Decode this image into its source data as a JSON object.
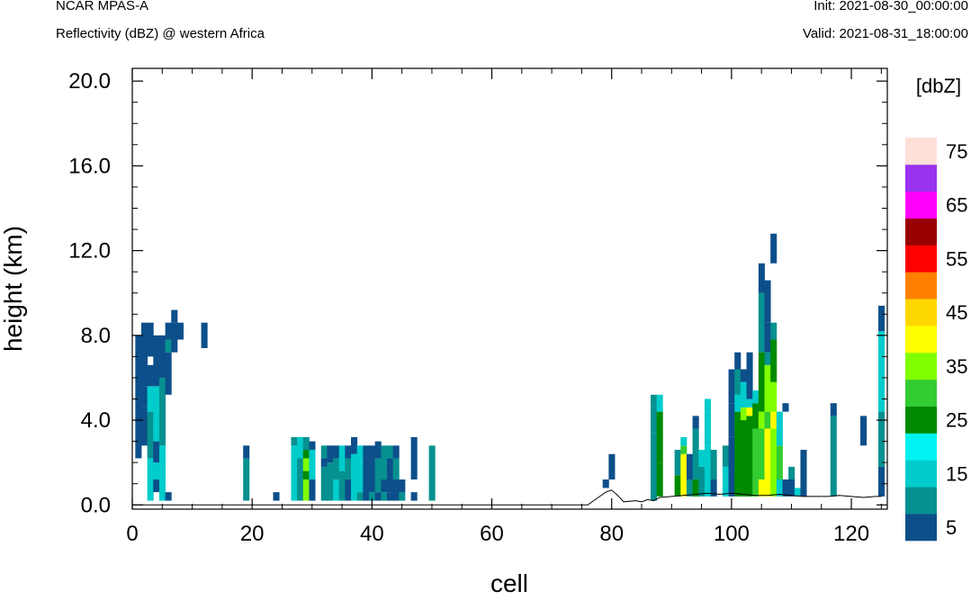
{
  "header": {
    "left_title": "NCAR MPAS-A",
    "left_subtitle": "Reflectivity (dBZ) @ western Africa",
    "init": "Init: 2021-08-30_00:00:00",
    "valid": "Valid: 2021-08-31_18:00:00"
  },
  "colorbar": {
    "unit_label": "[dbZ]",
    "labels": [
      "5",
      "15",
      "25",
      "35",
      "45",
      "55",
      "65",
      "75"
    ],
    "colors": [
      "#0c4f8a",
      "#079090",
      "#00cccc",
      "#00f2f2",
      "#008a00",
      "#33cc33",
      "#80ff00",
      "#ffff00",
      "#ffd700",
      "#ff8000",
      "#ff0000",
      "#990000",
      "#ff00ff",
      "#9933ee",
      "#ffe0d8"
    ]
  },
  "chart_data": {
    "type": "heatmap",
    "title": "Reflectivity (dBZ) @ western Africa",
    "xlabel": "cell",
    "ylabel": "height (km)",
    "xlim": [
      0,
      126
    ],
    "ylim": [
      -0.2,
      20.6
    ],
    "x_ticks": [
      0,
      20,
      40,
      60,
      80,
      100,
      120
    ],
    "x_tick_labels": [
      "0",
      "20",
      "40",
      "60",
      "80",
      "100",
      "120"
    ],
    "y_ticks": [
      0,
      4,
      8,
      12,
      16,
      20
    ],
    "y_tick_labels": [
      "0.0",
      "4.0",
      "8.0",
      "12.0",
      "16.0",
      "20.0"
    ],
    "color_levels": [
      5,
      10,
      15,
      20,
      25,
      30,
      35,
      40,
      45,
      50,
      55,
      60,
      65,
      70,
      75
    ],
    "terrain_height_km": [
      [
        0,
        0
      ],
      [
        76,
        0
      ],
      [
        78,
        0.4
      ],
      [
        79,
        0.6
      ],
      [
        80,
        0.7
      ],
      [
        81,
        0.45
      ],
      [
        82,
        0.15
      ],
      [
        84,
        0.2
      ],
      [
        85,
        0.15
      ],
      [
        86,
        0.25
      ],
      [
        87,
        0.2
      ],
      [
        88,
        0.35
      ],
      [
        90,
        0.4
      ],
      [
        92,
        0.45
      ],
      [
        94,
        0.5
      ],
      [
        96,
        0.55
      ],
      [
        98,
        0.5
      ],
      [
        100,
        0.55
      ],
      [
        102,
        0.5
      ],
      [
        104,
        0.45
      ],
      [
        106,
        0.45
      ],
      [
        108,
        0.5
      ],
      [
        110,
        0.45
      ],
      [
        112,
        0.4
      ],
      [
        114,
        0.4
      ],
      [
        116,
        0.4
      ],
      [
        118,
        0.45
      ],
      [
        120,
        0.4
      ],
      [
        122,
        0.35
      ],
      [
        124,
        0.4
      ],
      [
        125,
        0.4
      ]
    ],
    "columns": [
      {
        "x": 1,
        "cells": [
          [
            2.2,
            2.6,
            5
          ],
          [
            2.6,
            4.0,
            5
          ],
          [
            4.0,
            8.0,
            5
          ]
        ]
      },
      {
        "x": 2,
        "cells": [
          [
            2.8,
            4.6,
            5
          ],
          [
            4.6,
            5.6,
            5
          ],
          [
            5.6,
            8.6,
            5
          ]
        ]
      },
      {
        "x": 3,
        "cells": [
          [
            0.2,
            2.2,
            15
          ],
          [
            2.2,
            4.4,
            10
          ],
          [
            4.4,
            5.6,
            15
          ],
          [
            5.6,
            6.0,
            5
          ],
          [
            6.0,
            6.6,
            5
          ],
          [
            7.0,
            8.6,
            5
          ]
        ]
      },
      {
        "x": 4,
        "cells": [
          [
            0.6,
            1.2,
            5
          ],
          [
            1.2,
            2.0,
            15
          ],
          [
            2.0,
            3.0,
            5
          ],
          [
            3.0,
            3.6,
            15
          ],
          [
            3.6,
            5.6,
            15
          ],
          [
            5.6,
            8.0,
            5
          ]
        ]
      },
      {
        "x": 5,
        "cells": [
          [
            0.2,
            1.2,
            15
          ],
          [
            1.2,
            2.8,
            15
          ],
          [
            2.8,
            3.6,
            10
          ],
          [
            3.6,
            6.0,
            10
          ],
          [
            6.0,
            8.0,
            5
          ]
        ]
      },
      {
        "x": 6,
        "cells": [
          [
            0.2,
            0.6,
            5
          ],
          [
            5.2,
            7.2,
            5
          ],
          [
            7.2,
            7.8,
            10
          ],
          [
            7.8,
            8.6,
            5
          ]
        ]
      },
      {
        "x": 7,
        "cells": [
          [
            7.2,
            8.6,
            5
          ],
          [
            8.6,
            9.2,
            5
          ]
        ]
      },
      {
        "x": 8,
        "cells": [
          [
            7.8,
            8.6,
            5
          ]
        ]
      },
      {
        "x": 12,
        "cells": [
          [
            7.4,
            8.6,
            5
          ]
        ]
      },
      {
        "x": 19,
        "cells": [
          [
            0.2,
            2.2,
            10
          ],
          [
            2.2,
            2.8,
            5
          ]
        ]
      },
      {
        "x": 24,
        "cells": [
          [
            0.2,
            0.6,
            5
          ]
        ]
      },
      {
        "x": 27,
        "cells": [
          [
            0.2,
            2.8,
            15
          ],
          [
            2.8,
            3.2,
            10
          ]
        ]
      },
      {
        "x": 28,
        "cells": [
          [
            0.2,
            2.2,
            10
          ],
          [
            2.2,
            3.2,
            15
          ]
        ]
      },
      {
        "x": 29,
        "cells": [
          [
            0.2,
            1.2,
            35
          ],
          [
            1.2,
            1.6,
            25
          ],
          [
            1.6,
            2.2,
            35
          ],
          [
            2.2,
            2.6,
            25
          ],
          [
            2.6,
            3.2,
            10
          ]
        ]
      },
      {
        "x": 30,
        "cells": [
          [
            0.2,
            1.2,
            5
          ],
          [
            1.2,
            2.6,
            15
          ],
          [
            2.6,
            3.0,
            5
          ]
        ]
      },
      {
        "x": 32,
        "cells": [
          [
            0.2,
            1.8,
            10
          ],
          [
            1.8,
            2.2,
            5
          ],
          [
            2.2,
            2.8,
            10
          ]
        ]
      },
      {
        "x": 33,
        "cells": [
          [
            0.2,
            2.0,
            10
          ],
          [
            2.0,
            2.8,
            5
          ]
        ]
      },
      {
        "x": 34,
        "cells": [
          [
            0.2,
            1.2,
            15
          ],
          [
            1.2,
            2.2,
            10
          ],
          [
            2.2,
            2.8,
            5
          ]
        ]
      },
      {
        "x": 35,
        "cells": [
          [
            0.2,
            1.6,
            10
          ],
          [
            1.6,
            2.8,
            15
          ]
        ]
      },
      {
        "x": 36,
        "cells": [
          [
            0.2,
            1.2,
            5
          ],
          [
            1.2,
            2.2,
            10
          ],
          [
            2.2,
            2.8,
            5
          ]
        ]
      },
      {
        "x": 37,
        "cells": [
          [
            0.2,
            1.2,
            15
          ],
          [
            1.2,
            2.4,
            15
          ],
          [
            2.4,
            3.2,
            5
          ]
        ]
      },
      {
        "x": 38,
        "cells": [
          [
            0.2,
            0.6,
            10
          ],
          [
            0.6,
            2.0,
            15
          ],
          [
            2.0,
            2.8,
            15
          ]
        ]
      },
      {
        "x": 39,
        "cells": [
          [
            0.2,
            1.2,
            5
          ],
          [
            1.2,
            2.8,
            5
          ]
        ]
      },
      {
        "x": 40,
        "cells": [
          [
            0.2,
            0.6,
            10
          ],
          [
            0.6,
            2.2,
            5
          ],
          [
            2.2,
            2.8,
            5
          ]
        ]
      },
      {
        "x": 41,
        "cells": [
          [
            0.2,
            0.6,
            5
          ],
          [
            0.6,
            2.2,
            10
          ],
          [
            2.2,
            3.0,
            5
          ]
        ]
      },
      {
        "x": 42,
        "cells": [
          [
            0.2,
            0.6,
            10
          ],
          [
            0.6,
            1.2,
            5
          ],
          [
            1.2,
            2.8,
            10
          ]
        ]
      },
      {
        "x": 43,
        "cells": [
          [
            0.2,
            0.6,
            5
          ],
          [
            0.6,
            2.2,
            5
          ],
          [
            2.2,
            2.8,
            10
          ]
        ]
      },
      {
        "x": 44,
        "cells": [
          [
            0.2,
            1.2,
            5
          ],
          [
            1.2,
            2.2,
            10
          ],
          [
            2.2,
            2.8,
            5
          ]
        ]
      },
      {
        "x": 45,
        "cells": [
          [
            0.2,
            0.6,
            10
          ],
          [
            0.6,
            1.2,
            5
          ]
        ]
      },
      {
        "x": 47,
        "cells": [
          [
            0.2,
            0.6,
            5
          ],
          [
            1.2,
            3.2,
            5
          ]
        ]
      },
      {
        "x": 50,
        "cells": [
          [
            0.2,
            2.8,
            10
          ]
        ]
      },
      {
        "x": 79,
        "cells": [
          [
            0.8,
            1.2,
            5
          ]
        ]
      },
      {
        "x": 80,
        "cells": [
          [
            1.2,
            2.4,
            5
          ]
        ]
      },
      {
        "x": 87,
        "cells": [
          [
            0.2,
            3.4,
            10
          ],
          [
            3.4,
            4.6,
            10
          ],
          [
            4.6,
            5.2,
            10
          ]
        ]
      },
      {
        "x": 88,
        "cells": [
          [
            0.4,
            2.0,
            25
          ],
          [
            2.0,
            4.4,
            25
          ],
          [
            4.4,
            5.2,
            15
          ]
        ]
      },
      {
        "x": 91,
        "cells": [
          [
            0.4,
            1.4,
            25
          ],
          [
            1.4,
            2.6,
            10
          ]
        ]
      },
      {
        "x": 92,
        "cells": [
          [
            0.4,
            2.4,
            40
          ],
          [
            2.4,
            2.8,
            30
          ],
          [
            2.8,
            3.2,
            15
          ]
        ]
      },
      {
        "x": 93,
        "cells": [
          [
            0.4,
            1.2,
            10
          ],
          [
            1.2,
            2.4,
            5
          ]
        ]
      },
      {
        "x": 94,
        "cells": [
          [
            0.4,
            1.2,
            25
          ],
          [
            1.2,
            3.6,
            10
          ],
          [
            3.6,
            4.2,
            5
          ]
        ]
      },
      {
        "x": 95,
        "cells": [
          [
            0.4,
            1.8,
            10
          ],
          [
            1.8,
            2.6,
            15
          ]
        ]
      },
      {
        "x": 96,
        "cells": [
          [
            0.4,
            2.8,
            15
          ],
          [
            2.8,
            4.4,
            15
          ],
          [
            4.4,
            5.0,
            15
          ]
        ]
      },
      {
        "x": 97,
        "cells": [
          [
            0.4,
            1.2,
            5
          ],
          [
            1.2,
            2.6,
            10
          ]
        ]
      },
      {
        "x": 99,
        "cells": [
          [
            0.4,
            1.8,
            15
          ],
          [
            1.8,
            2.8,
            10
          ]
        ]
      },
      {
        "x": 100,
        "cells": [
          [
            0.4,
            3.2,
            5
          ],
          [
            3.2,
            4.8,
            5
          ],
          [
            4.8,
            6.4,
            5
          ]
        ]
      },
      {
        "x": 101,
        "cells": [
          [
            0.4,
            4.4,
            25
          ],
          [
            4.4,
            5.2,
            15
          ],
          [
            5.2,
            6.4,
            10
          ],
          [
            6.4,
            7.2,
            5
          ]
        ]
      },
      {
        "x": 102,
        "cells": [
          [
            0.4,
            4.0,
            25
          ],
          [
            4.0,
            4.6,
            35
          ],
          [
            4.6,
            5.8,
            15
          ],
          [
            5.8,
            6.4,
            5
          ]
        ]
      },
      {
        "x": 103,
        "cells": [
          [
            0.4,
            4.2,
            25
          ],
          [
            4.2,
            4.6,
            40
          ],
          [
            4.6,
            5.0,
            15
          ],
          [
            5.0,
            7.2,
            5
          ]
        ]
      },
      {
        "x": 104,
        "cells": [
          [
            0.4,
            3.6,
            30
          ],
          [
            3.6,
            4.0,
            25
          ],
          [
            4.0,
            4.8,
            25
          ],
          [
            4.8,
            5.4,
            15
          ]
        ]
      },
      {
        "x": 105,
        "cells": [
          [
            0.4,
            1.2,
            40
          ],
          [
            1.2,
            3.6,
            30
          ],
          [
            3.6,
            4.4,
            35
          ],
          [
            4.4,
            7.2,
            25
          ],
          [
            7.2,
            10.0,
            10
          ],
          [
            10.0,
            11.4,
            5
          ]
        ]
      },
      {
        "x": 106,
        "cells": [
          [
            0.4,
            3.6,
            40
          ],
          [
            3.6,
            4.4,
            30
          ],
          [
            4.4,
            6.6,
            35
          ],
          [
            6.6,
            7.2,
            10
          ],
          [
            7.2,
            8.6,
            5
          ],
          [
            8.6,
            10.6,
            5
          ]
        ]
      },
      {
        "x": 107,
        "cells": [
          [
            0.4,
            3.6,
            35
          ],
          [
            3.6,
            4.4,
            40
          ],
          [
            4.4,
            5.8,
            35
          ],
          [
            5.8,
            7.8,
            25
          ],
          [
            7.8,
            8.6,
            10
          ],
          [
            11.4,
            12.8,
            5
          ]
        ]
      },
      {
        "x": 108,
        "cells": [
          [
            0.4,
            1.2,
            15
          ],
          [
            1.2,
            2.8,
            30
          ],
          [
            2.8,
            4.4,
            15
          ]
        ]
      },
      {
        "x": 109,
        "cells": [
          [
            0.4,
            1.2,
            5
          ],
          [
            4.4,
            4.8,
            5
          ]
        ]
      },
      {
        "x": 110,
        "cells": [
          [
            0.4,
            1.2,
            5
          ],
          [
            1.2,
            1.8,
            10
          ]
        ]
      },
      {
        "x": 111,
        "cells": [
          [
            0.4,
            0.8,
            15
          ]
        ]
      },
      {
        "x": 112,
        "cells": [
          [
            0.4,
            2.6,
            5
          ]
        ]
      },
      {
        "x": 117,
        "cells": [
          [
            0.4,
            4.2,
            10
          ],
          [
            4.2,
            4.8,
            5
          ]
        ]
      },
      {
        "x": 122,
        "cells": [
          [
            2.8,
            4.2,
            5
          ]
        ]
      },
      {
        "x": 125,
        "cells": [
          [
            0.4,
            1.8,
            5
          ],
          [
            1.8,
            4.4,
            10
          ],
          [
            4.4,
            8.2,
            15
          ],
          [
            8.2,
            9.4,
            5
          ]
        ]
      }
    ]
  }
}
